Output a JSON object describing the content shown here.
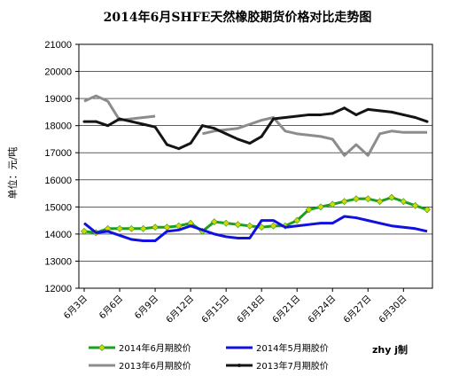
{
  "chart_data": {
    "type": "line",
    "title": "2014年6月SHFE天然橡胶期货价格对比走势图",
    "ylabel": "单位：元/吨",
    "xlabel": "",
    "ylim": [
      12000,
      21000
    ],
    "yticks": [
      12000,
      13000,
      14000,
      15000,
      16000,
      17000,
      18000,
      19000,
      20000,
      21000
    ],
    "xtick_labels": [
      "6月3日",
      "6月6日",
      "6月9日",
      "6月12日",
      "6月15日",
      "6月18日",
      "6月21日",
      "6月24日",
      "6月27日",
      "6月30日"
    ],
    "grid": "horizontal",
    "legend_position": "bottom",
    "credit": "zhy j制",
    "series": [
      {
        "name": "2014年6月期胶价",
        "color": "#1e9e1e",
        "marker": "diamond",
        "marker_color": "#d6d600",
        "x": [
          1,
          2,
          3,
          4,
          5,
          6,
          7,
          8,
          9,
          10,
          11,
          12,
          13,
          14,
          15,
          16,
          17,
          18,
          19,
          20,
          21,
          22,
          23,
          24,
          25,
          26,
          27,
          28,
          29,
          30
        ],
        "values": [
          14100,
          14050,
          14200,
          14200,
          14200,
          14200,
          14250,
          14250,
          14300,
          14400,
          14100,
          14450,
          14400,
          14350,
          14300,
          14250,
          14300,
          14300,
          14500,
          14900,
          15000,
          15100,
          15200,
          15300,
          15300,
          15200,
          15350,
          15200,
          15050,
          14900
        ]
      },
      {
        "name": "2014年5月期胶价",
        "color": "#1010e0",
        "x": [
          1,
          2,
          3,
          4,
          5,
          6,
          7,
          8,
          9,
          10,
          11,
          12,
          13,
          14,
          15,
          16,
          17,
          18,
          19,
          20,
          21,
          22,
          23,
          24,
          25,
          26,
          27,
          28,
          29,
          30
        ],
        "values": [
          14400,
          14050,
          14100,
          13950,
          13800,
          13750,
          13750,
          14100,
          14150,
          14300,
          14150,
          14000,
          13900,
          13850,
          13850,
          14500,
          14500,
          14250,
          14300,
          14350,
          14400,
          14400,
          14650,
          14600,
          14500,
          14400,
          14300,
          14250,
          14200,
          14100
        ]
      },
      {
        "name": "2013年6月期胶价",
        "color": "#8c8c8c",
        "x": [
          1,
          2,
          3,
          4,
          5,
          6,
          7,
          8,
          9,
          10,
          11,
          12,
          13,
          14,
          15,
          16,
          17,
          18,
          19,
          20,
          21,
          22,
          23,
          24,
          25,
          26,
          27,
          28,
          29,
          30
        ],
        "values": [
          18900,
          19100,
          18900,
          18200,
          18250,
          18300,
          18350,
          null,
          null,
          null,
          17700,
          17800,
          17850,
          17900,
          18050,
          18200,
          18300,
          17800,
          17700,
          17650,
          17600,
          17500,
          16900,
          17300,
          16900,
          17700,
          17800,
          17750,
          17750,
          17750
        ]
      },
      {
        "name": "2013年7月期胶价",
        "color": "#141414",
        "marker": "dot",
        "x": [
          1,
          2,
          3,
          4,
          5,
          6,
          7,
          8,
          9,
          10,
          11,
          12,
          13,
          14,
          15,
          16,
          17,
          18,
          19,
          20,
          21,
          22,
          23,
          24,
          25,
          26,
          27,
          28,
          29,
          30
        ],
        "values": [
          18150,
          18150,
          18000,
          18250,
          18150,
          18050,
          17950,
          17300,
          17150,
          17350,
          18000,
          17900,
          17700,
          17500,
          17350,
          17600,
          18250,
          18300,
          18350,
          18400,
          18400,
          18450,
          18650,
          18400,
          18600,
          18550,
          18500,
          18400,
          18300,
          18150
        ]
      }
    ],
    "colors": {
      "grid": "#000000",
      "axis": "#000000"
    }
  }
}
